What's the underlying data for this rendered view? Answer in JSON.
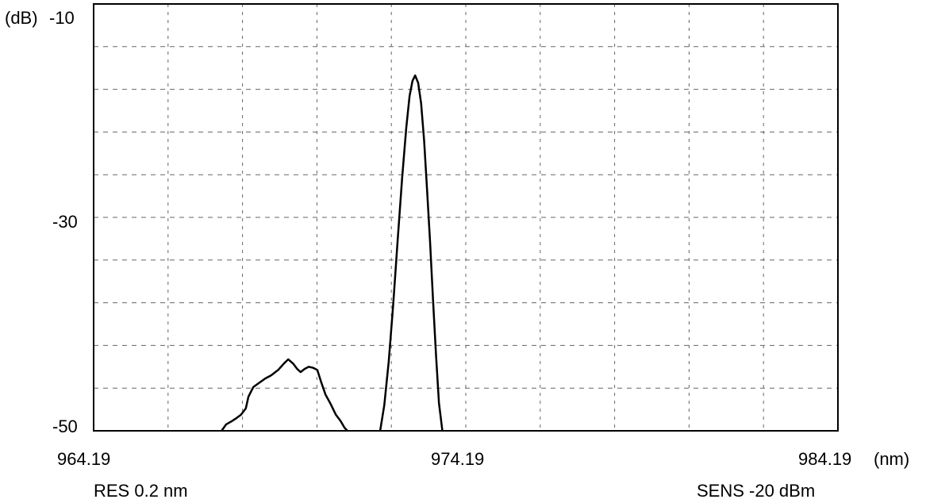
{
  "chart_data": {
    "type": "line",
    "y_unit": "(dB)",
    "x_unit": "(nm)",
    "xlim": [
      964.19,
      984.19
    ],
    "ylim": [
      -50,
      -10
    ],
    "y_ticks": [
      {
        "value": -10,
        "label": "-10"
      },
      {
        "value": -30,
        "label": "-30"
      },
      {
        "value": -50,
        "label": "-50"
      }
    ],
    "x_ticks": [
      {
        "value": 964.19,
        "label": "964.19"
      },
      {
        "value": 974.19,
        "label": "974.19"
      },
      {
        "value": 984.19,
        "label": "984.19"
      }
    ],
    "grid": true,
    "footer_left": "RES 0.2 nm",
    "footer_right": "SENS -20 dBm",
    "series": [
      {
        "x": [
          967.63,
          967.75,
          967.9,
          968.03,
          968.15,
          968.28,
          968.35,
          968.48,
          968.64,
          968.8,
          968.96,
          969.15,
          969.3,
          969.42,
          969.55,
          969.66,
          969.75,
          969.86,
          969.97,
          970.09,
          970.2,
          970.3,
          970.42,
          970.56,
          970.7,
          970.83,
          970.93,
          971.01
        ],
        "y": [
          -50.0,
          -49.4,
          -49.1,
          -48.8,
          -48.5,
          -47.9,
          -46.8,
          -45.9,
          -45.5,
          -45.1,
          -44.8,
          -44.3,
          -43.7,
          -43.3,
          -43.7,
          -44.2,
          -44.5,
          -44.2,
          -44.0,
          -44.1,
          -44.3,
          -45.4,
          -46.6,
          -47.5,
          -48.5,
          -49.1,
          -49.7,
          -50.0
        ]
      },
      {
        "x": [
          971.89,
          972.0,
          972.12,
          972.24,
          972.36,
          972.48,
          972.59,
          972.68,
          972.76,
          972.83,
          972.91,
          972.99,
          973.07,
          973.15,
          973.23,
          973.31,
          973.39,
          973.47,
          973.56
        ],
        "y": [
          -50.0,
          -47.6,
          -43.5,
          -38.2,
          -32.1,
          -26.3,
          -21.6,
          -18.6,
          -17.2,
          -16.7,
          -17.4,
          -19.3,
          -22.8,
          -27.4,
          -32.3,
          -37.7,
          -42.9,
          -47.4,
          -50.0
        ]
      }
    ]
  }
}
